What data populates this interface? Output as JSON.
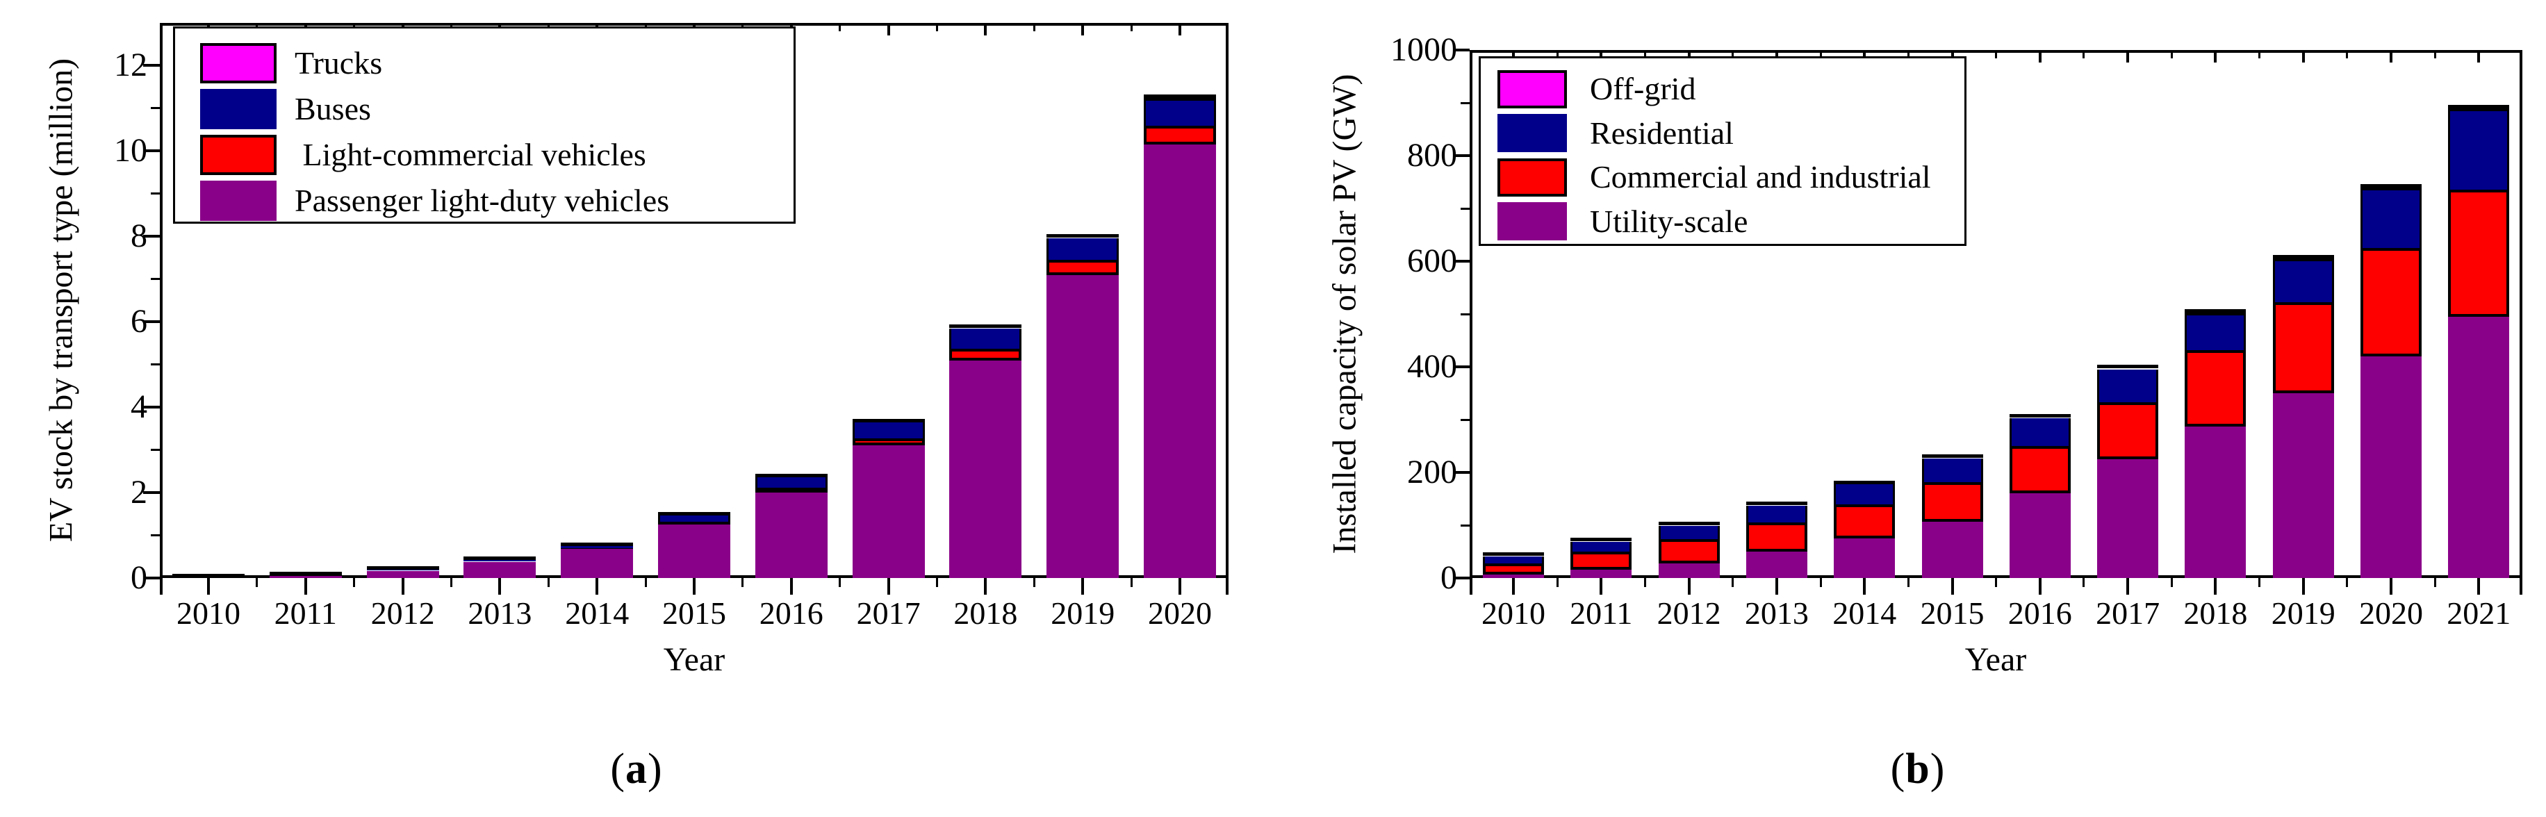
{
  "colors": {
    "magenta": "#FF00FF",
    "navy": "#00008B",
    "red": "#FF0000",
    "purple": "#8A0189",
    "axis_black": "#000000",
    "background": "#FFFFFF"
  },
  "chart_data": [
    {
      "id": "a",
      "type": "bar",
      "stacked": true,
      "title": "",
      "xlabel": "Year",
      "ylabel": "EV stock by transport type (million)",
      "caption": {
        "open": "(",
        "letter": "a",
        "close": ")"
      },
      "ylim": [
        0,
        13
      ],
      "yticks": [
        0,
        2,
        4,
        6,
        8,
        10,
        12
      ],
      "yminor": [
        1,
        3,
        5,
        7,
        9,
        11
      ],
      "grid": false,
      "legend_position": "top-left",
      "categories": [
        "2010",
        "2011",
        "2012",
        "2013",
        "2014",
        "2015",
        "2016",
        "2017",
        "2018",
        "2019",
        "2020"
      ],
      "series": [
        {
          "name": "trucks",
          "label": "Trucks",
          "color_key": "magenta",
          "bordered": true,
          "values": [
            0,
            0,
            0,
            0,
            0,
            0,
            0,
            0,
            0.01,
            0.03,
            0.05
          ]
        },
        {
          "name": "buses",
          "label": "Buses",
          "color_key": "navy",
          "bordered": false,
          "values": [
            0.003,
            0.01,
            0.02,
            0.03,
            0.05,
            0.15,
            0.25,
            0.38,
            0.47,
            0.5,
            0.6
          ]
        },
        {
          "name": "light-commercial-vehicles",
          "label": " Light-commercial vehicles",
          "color_key": "red",
          "bordered": true,
          "values": [
            0.002,
            0.005,
            0.008,
            0.012,
            0.02,
            0.07,
            0.11,
            0.17,
            0.27,
            0.35,
            0.45
          ]
        },
        {
          "name": "passenger-light-duty-vehicles",
          "label": "Passenger light-duty vehicles",
          "color_key": "purple",
          "bordered": false,
          "values": [
            0.015,
            0.055,
            0.17,
            0.38,
            0.68,
            1.25,
            2.0,
            3.1,
            5.1,
            7.1,
            10.15
          ]
        }
      ],
      "totals": [
        0.02,
        0.07,
        0.2,
        0.42,
        0.75,
        1.47,
        2.36,
        3.65,
        5.85,
        7.98,
        11.25
      ]
    },
    {
      "id": "b",
      "type": "bar",
      "stacked": true,
      "title": "",
      "xlabel": "Year",
      "ylabel": "Installed capacity of solar PV (GW)",
      "caption": {
        "open": "(",
        "letter": "b",
        "close": ")"
      },
      "ylim": [
        0,
        1000
      ],
      "yticks": [
        0,
        200,
        400,
        600,
        800,
        1000
      ],
      "yminor": [
        100,
        300,
        500,
        700,
        900
      ],
      "grid": false,
      "legend_position": "top-left",
      "categories": [
        "2010",
        "2011",
        "2012",
        "2013",
        "2014",
        "2015",
        "2016",
        "2017",
        "2018",
        "2019",
        "2020",
        "2021"
      ],
      "series": [
        {
          "name": "off-grid",
          "label": "Off-grid",
          "color_key": "magenta",
          "bordered": true,
          "values": [
            1,
            1,
            1,
            1,
            1,
            2,
            2,
            2,
            3,
            3,
            4,
            5
          ]
        },
        {
          "name": "residential",
          "label": "Residential",
          "color_key": "navy",
          "bordered": false,
          "values": [
            13,
            19,
            25,
            32,
            38,
            45,
            52,
            62,
            67,
            80,
            110,
            150
          ]
        },
        {
          "name": "commercial-and-industrial",
          "label": "Commercial and industrial",
          "color_key": "red",
          "bordered": true,
          "values": [
            21,
            34,
            46,
            55,
            64,
            74,
            90,
            108,
            145,
            172,
            205,
            240
          ]
        },
        {
          "name": "utility-scale",
          "label": "Utility-scale",
          "color_key": "purple",
          "bordered": false,
          "values": [
            7,
            16,
            28,
            50,
            75,
            107,
            160,
            225,
            287,
            350,
            420,
            495
          ]
        }
      ],
      "totals": [
        42,
        70,
        100,
        138,
        178,
        228,
        304,
        397,
        502,
        605,
        739,
        890
      ]
    }
  ]
}
